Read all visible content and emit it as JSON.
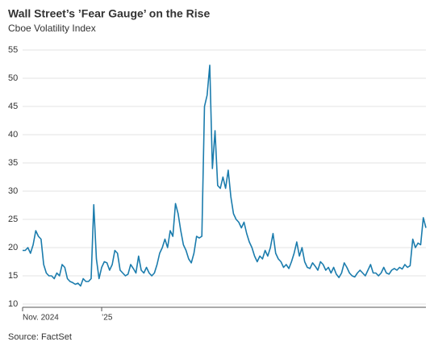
{
  "chart_data": {
    "type": "line",
    "title": "Wall Street’s ’Fear Gauge’ on the Rise",
    "subtitle": "Cboe Volatility Index",
    "source": "Source: FactSet",
    "color": "#1b7cad",
    "values": [
      19.5,
      19.5,
      20,
      19,
      20.5,
      23,
      22,
      21.5,
      17,
      15.5,
      15,
      15,
      14.5,
      15.5,
      15,
      17,
      16.5,
      14.5,
      14,
      13.8,
      13.5,
      13.7,
      13.2,
      14.5,
      14,
      14,
      14.5,
      27.6,
      18,
      14.5,
      16.5,
      17.5,
      17.3,
      16,
      17,
      19.5,
      19,
      16,
      15.5,
      15,
      15.3,
      17,
      16.3,
      15.5,
      18.5,
      16,
      15.5,
      16.5,
      15.5,
      15,
      15.5,
      17,
      19,
      20,
      21.5,
      20,
      23,
      22,
      27.8,
      26,
      23,
      20.5,
      19.5,
      18,
      17.3,
      19,
      22,
      21.7,
      22,
      45,
      47,
      52.3,
      34,
      40.7,
      31,
      30.5,
      32.5,
      30.5,
      33.7,
      29,
      26,
      25,
      24.5,
      23.5,
      24.5,
      22.5,
      21,
      20,
      18.5,
      17.5,
      18.5,
      18,
      19.5,
      18.5,
      20,
      22.5,
      19,
      18,
      17.5,
      16.5,
      17,
      16.3,
      17.5,
      19,
      21,
      18.5,
      20,
      17.5,
      16.5,
      16.3,
      17.3,
      16.7,
      16,
      17.5,
      17,
      16,
      16.5,
      15.5,
      16.5,
      15.3,
      14.7,
      15.5,
      17.3,
      16.5,
      15.5,
      15,
      14.8,
      15.5,
      16,
      15.5,
      15,
      16,
      17,
      15.5,
      15.5,
      15,
      15.5,
      16.5,
      15.5,
      15.3,
      16,
      16.3,
      16,
      16.5,
      16.2,
      17,
      16.5,
      16.8,
      21.5,
      20,
      20.8,
      20.5,
      25.3,
      23.5
    ],
    "xlim": [
      0,
      153
    ],
    "xticks": [
      {
        "value": 0,
        "label": "Nov. 2024"
      },
      {
        "value": 30,
        "label": "’25"
      }
    ],
    "ylim": [
      10,
      55
    ],
    "yticks": [
      10,
      15,
      20,
      25,
      30,
      35,
      40,
      45,
      50,
      55
    ],
    "grid": true
  }
}
